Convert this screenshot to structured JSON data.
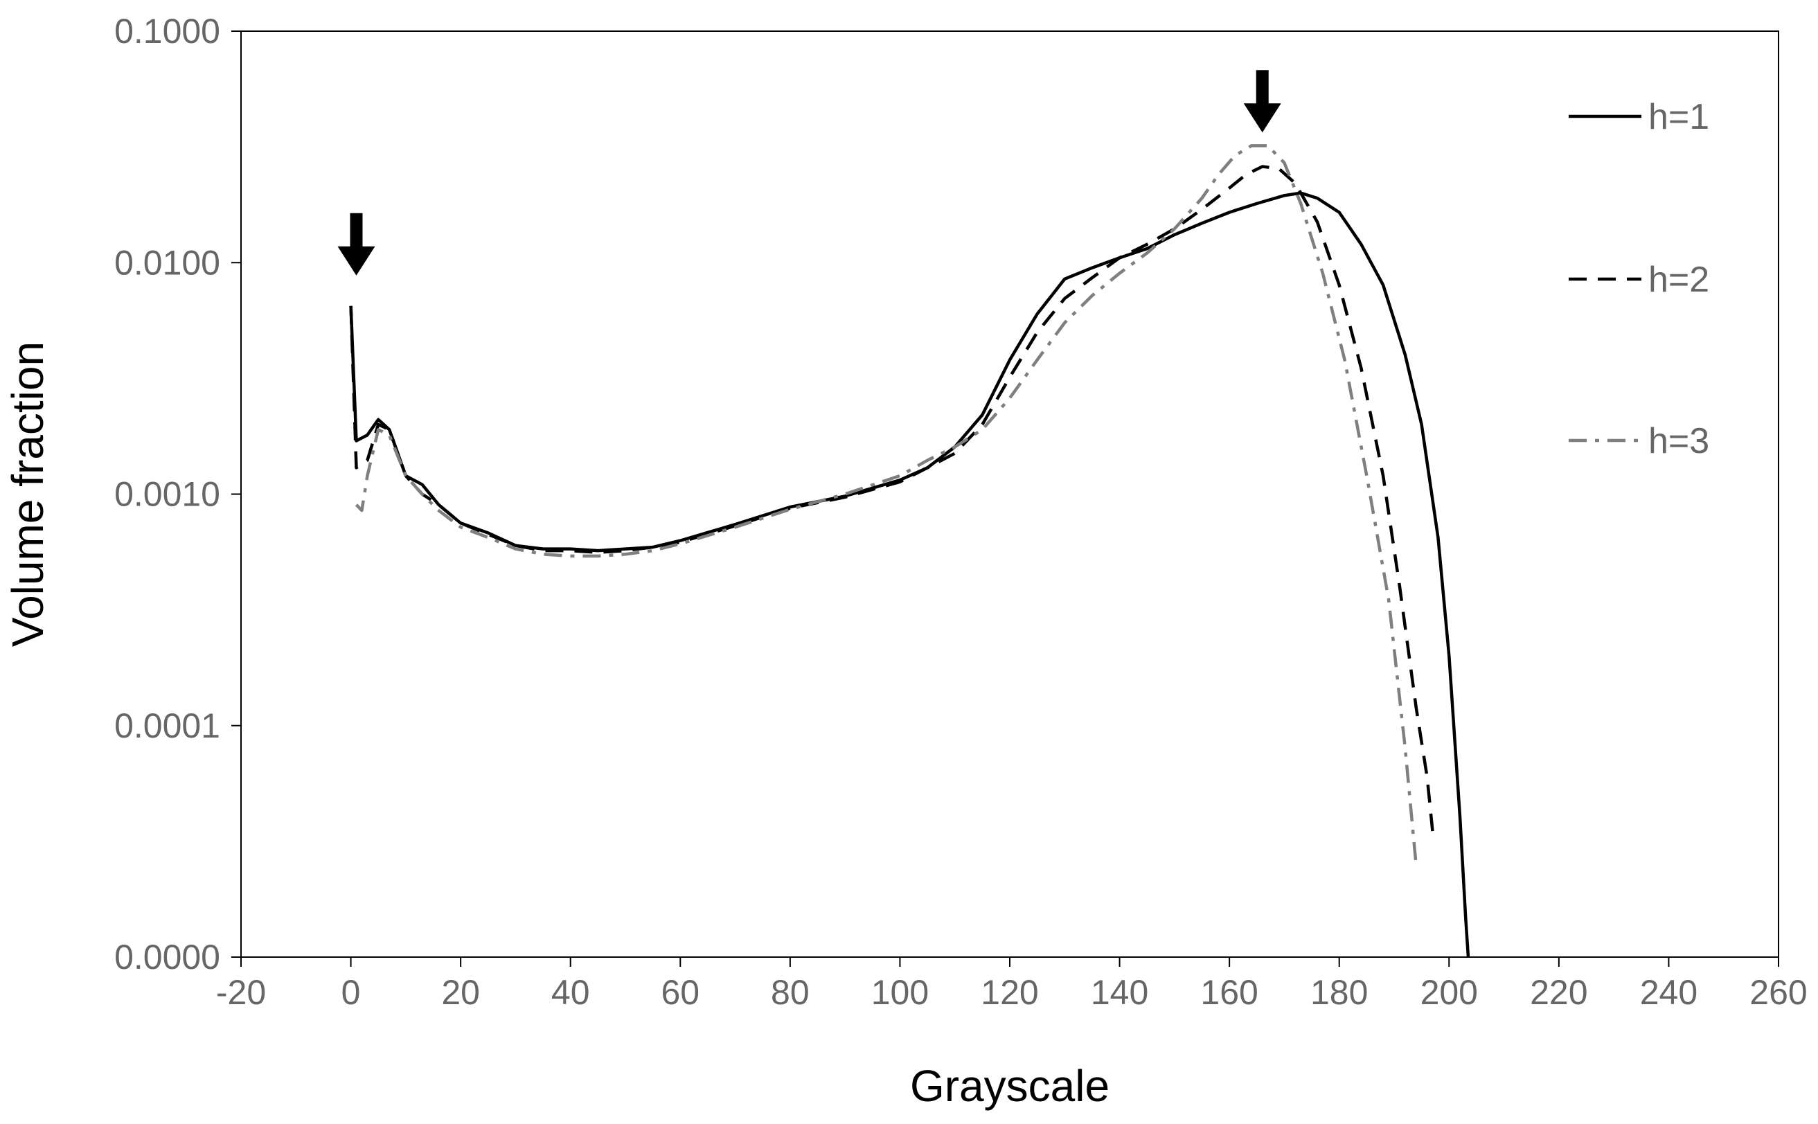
{
  "chart_data": {
    "type": "line",
    "title": "",
    "xlabel": "Grayscale",
    "ylabel": "Volume fraction",
    "xlim": [
      -20,
      260
    ],
    "xticks": [
      -20,
      0,
      20,
      40,
      60,
      80,
      100,
      120,
      140,
      160,
      180,
      200,
      220,
      240,
      260
    ],
    "xtick_labels": [
      "-20",
      "0",
      "20",
      "40",
      "60",
      "80",
      "100",
      "120",
      "140",
      "160",
      "180",
      "200",
      "220",
      "240",
      "260"
    ],
    "yscale": "log",
    "ylim": [
      1e-05,
      0.1
    ],
    "yticks": [
      1e-05,
      0.0001,
      0.001,
      0.01,
      0.1
    ],
    "ytick_labels": [
      "0.0000",
      "0.0001",
      "0.0010",
      "0.0100",
      "0.1000"
    ],
    "grid": false,
    "legend_position": "top-right",
    "annotations": [
      {
        "type": "down-arrow",
        "x": 1,
        "y_tip": 0.0088
      },
      {
        "type": "down-arrow",
        "x": 166,
        "y_tip": 0.0365
      }
    ],
    "series": [
      {
        "name": "h=1",
        "style": "solid",
        "color": "#000000",
        "x": [
          0,
          1,
          3,
          5,
          7,
          10,
          13,
          16,
          20,
          25,
          30,
          35,
          40,
          45,
          50,
          55,
          60,
          70,
          80,
          90,
          100,
          105,
          110,
          115,
          120,
          125,
          130,
          135,
          140,
          145,
          150,
          155,
          160,
          165,
          170,
          173,
          176,
          180,
          184,
          188,
          192,
          195,
          198,
          200,
          202,
          203,
          203.5
        ],
        "y": [
          0.0065,
          0.0017,
          0.0018,
          0.0021,
          0.0019,
          0.0012,
          0.0011,
          0.0009,
          0.00075,
          0.00068,
          0.0006,
          0.00058,
          0.00058,
          0.00057,
          0.00058,
          0.00059,
          0.00063,
          0.00074,
          0.00088,
          0.00098,
          0.00115,
          0.0013,
          0.0016,
          0.0022,
          0.0038,
          0.006,
          0.0085,
          0.0095,
          0.0105,
          0.0115,
          0.0132,
          0.0148,
          0.0165,
          0.018,
          0.0195,
          0.02,
          0.019,
          0.0165,
          0.012,
          0.008,
          0.004,
          0.002,
          0.00065,
          0.0002,
          4e-05,
          1.5e-05,
          1e-05
        ]
      },
      {
        "name": "h=2",
        "style": "dashed",
        "color": "#000000",
        "x": [
          0,
          1,
          3,
          5,
          7,
          10,
          13,
          16,
          20,
          25,
          30,
          35,
          40,
          45,
          50,
          55,
          60,
          70,
          80,
          90,
          100,
          105,
          110,
          115,
          120,
          125,
          130,
          135,
          140,
          145,
          150,
          155,
          160,
          163,
          166,
          169,
          172,
          176,
          180,
          184,
          188,
          191,
          194,
          196,
          197
        ],
        "y": [
          0.0065,
          0.0013,
          0.0014,
          0.002,
          0.0019,
          0.0012,
          0.001,
          0.0009,
          0.00075,
          0.00067,
          0.0006,
          0.00057,
          0.00057,
          0.00056,
          0.00057,
          0.00059,
          0.00062,
          0.00073,
          0.00087,
          0.00097,
          0.00113,
          0.0013,
          0.0015,
          0.002,
          0.0032,
          0.005,
          0.007,
          0.0086,
          0.0105,
          0.012,
          0.014,
          0.017,
          0.021,
          0.024,
          0.026,
          0.0255,
          0.022,
          0.015,
          0.008,
          0.0035,
          0.0012,
          0.0004,
          0.00012,
          6e-05,
          3.5e-05
        ]
      },
      {
        "name": "h=3",
        "style": "dash-dot",
        "color": "#7f7f7f",
        "x": [
          1,
          2,
          3,
          5,
          7,
          10,
          13,
          16,
          20,
          25,
          30,
          35,
          40,
          45,
          50,
          55,
          60,
          70,
          80,
          90,
          100,
          105,
          110,
          115,
          120,
          125,
          130,
          135,
          140,
          145,
          150,
          155,
          158,
          161,
          164,
          167,
          170,
          173,
          177,
          181,
          185,
          189,
          192,
          194
        ],
        "y": [
          0.0009,
          0.00085,
          0.0012,
          0.0019,
          0.0018,
          0.0012,
          0.001,
          0.00085,
          0.00072,
          0.00065,
          0.00058,
          0.00055,
          0.00054,
          0.00054,
          0.00055,
          0.00057,
          0.00061,
          0.00072,
          0.00086,
          0.001,
          0.0012,
          0.0014,
          0.0016,
          0.0019,
          0.0026,
          0.0038,
          0.0055,
          0.0072,
          0.009,
          0.011,
          0.014,
          0.019,
          0.024,
          0.029,
          0.032,
          0.032,
          0.027,
          0.018,
          0.009,
          0.0038,
          0.0012,
          0.00035,
          8e-05,
          2.5e-05
        ]
      }
    ]
  }
}
